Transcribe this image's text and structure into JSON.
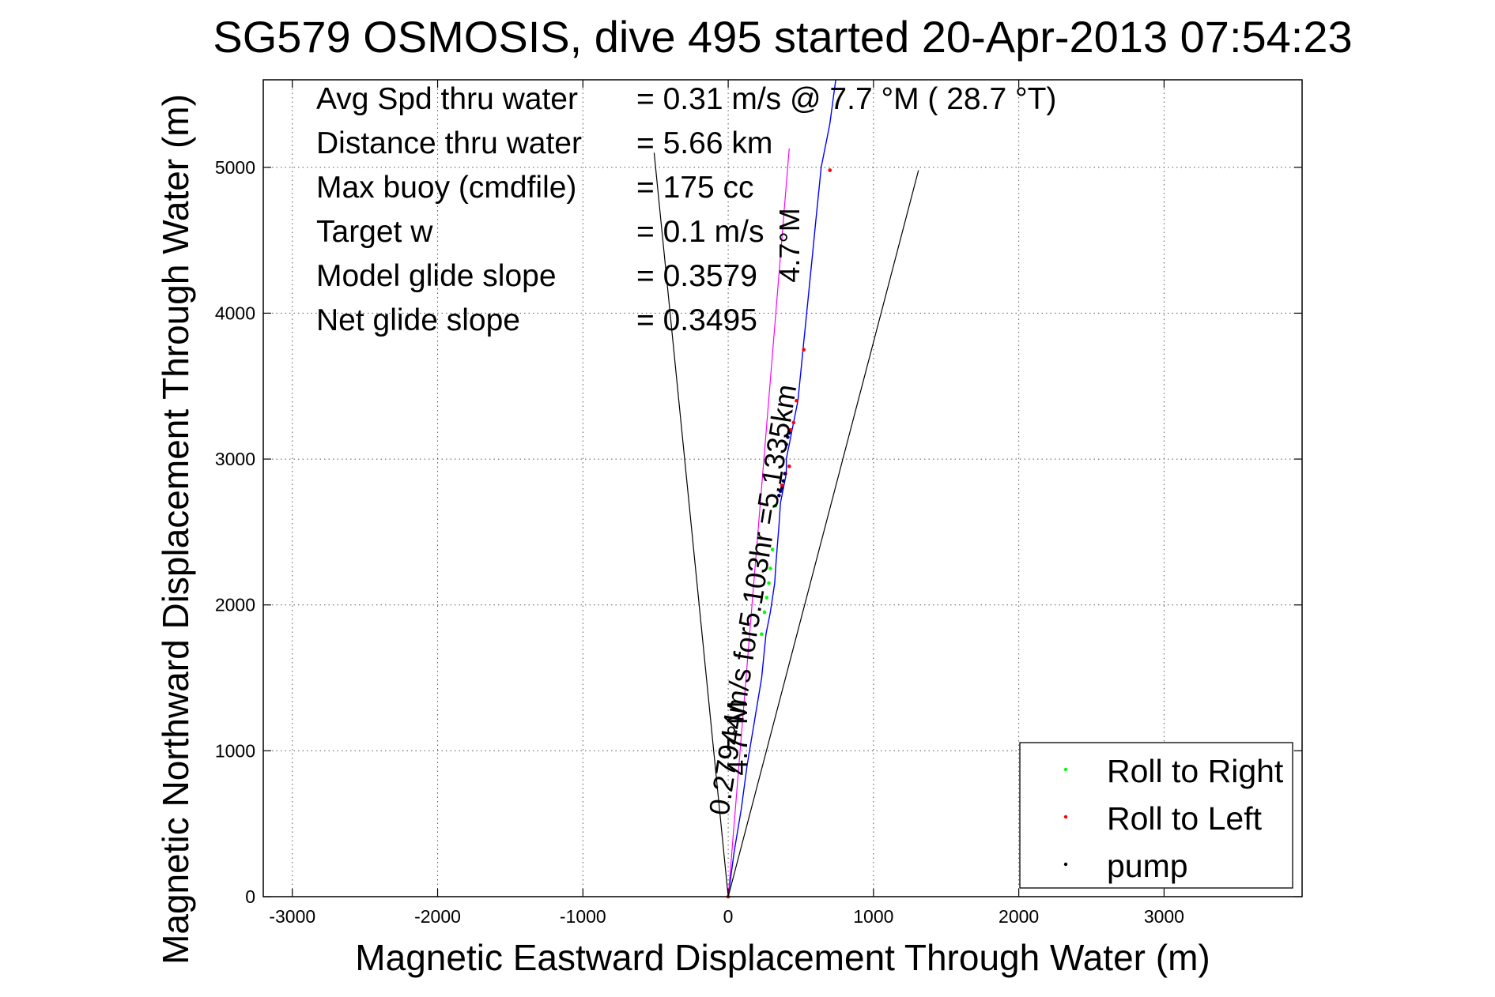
{
  "chart_data": {
    "type": "line",
    "title": "SG579 OSMOSIS, dive 495 started 20-Apr-2013 07:54:23",
    "xlabel": "Magnetic Eastward Displacement Through Water (m)",
    "ylabel": "Magnetic Northward Displacement Through Water (m)",
    "xlim": [
      -3200,
      3950
    ],
    "ylim": [
      0,
      5600
    ],
    "xticks": [
      -3000,
      -2000,
      -1000,
      0,
      1000,
      2000,
      3000
    ],
    "yticks": [
      0,
      1000,
      2000,
      3000,
      4000,
      5000
    ],
    "xtick_labels": [
      "-3000",
      "-2000",
      "-1000",
      "0",
      "1000",
      "2000",
      "3000"
    ],
    "ytick_labels": [
      "0",
      "1000",
      "2000",
      "3000",
      "4000",
      "5000"
    ],
    "grid": true,
    "stats": [
      {
        "label": "Avg Spd thru water",
        "value": "=  0.31 m/s @   7.7 °M ( 28.7 °T)"
      },
      {
        "label": "Distance thru water",
        "value": "=  5.66 km"
      },
      {
        "label": "Max buoy (cmdfile)",
        "value": "= 175 cc"
      },
      {
        "label": "Target w",
        "value": "= 0.1 m/s"
      },
      {
        "label": "Model glide slope",
        "value": "= 0.3579"
      },
      {
        "label": "Net glide slope",
        "value": "= 0.3495"
      }
    ],
    "annotations": [
      {
        "text": "0.27944m/s for5.103hr =5.1335km",
        "x": 0,
        "y": 550,
        "rotation": -81
      },
      {
        "text": "4.7°M",
        "x": 130,
        "y": 830,
        "rotation": -90
      },
      {
        "text": "4.7°M",
        "x": 490,
        "y": 4210,
        "rotation": -90
      }
    ],
    "series": [
      {
        "name": "track",
        "color": "#0000ff",
        "x": [
          0,
          40,
          90,
          130,
          180,
          230,
          260,
          290,
          320,
          330,
          350,
          360,
          380,
          400,
          400,
          410,
          420,
          430,
          440,
          450,
          460,
          480,
          490,
          500,
          510,
          520,
          530,
          540,
          550,
          560,
          580,
          600,
          620,
          640,
          660,
          680,
          700,
          720,
          740
        ],
        "y": [
          0,
          300,
          600,
          900,
          1200,
          1500,
          1800,
          1950,
          2150,
          2300,
          2550,
          2700,
          2800,
          2900,
          3000,
          3050,
          3100,
          3150,
          3200,
          3250,
          3300,
          3400,
          3500,
          3600,
          3700,
          3800,
          3900,
          4000,
          4100,
          4200,
          4400,
          4600,
          4800,
          5000,
          5100,
          5200,
          5300,
          5450,
          5600
        ]
      },
      {
        "name": "net-heading",
        "color": "#ff00ff",
        "x": [
          0,
          420
        ],
        "y": [
          0,
          5130
        ]
      },
      {
        "name": "envelope-left",
        "color": "#000000",
        "x": [
          0,
          -510
        ],
        "y": [
          0,
          5100
        ]
      },
      {
        "name": "envelope-right",
        "color": "#000000",
        "x": [
          0,
          1310
        ],
        "y": [
          0,
          4980
        ]
      }
    ],
    "markers": {
      "roll_right": {
        "x": [
          230,
          250,
          265,
          280,
          290,
          305,
          325
        ],
        "y": [
          1800,
          1950,
          2050,
          2150,
          2250,
          2380,
          2680
        ]
      },
      "roll_left": {
        "x": [
          0,
          370,
          395,
          420,
          430,
          450,
          470,
          520,
          700
        ],
        "y": [
          0,
          2820,
          2900,
          2950,
          3200,
          3250,
          3400,
          3750,
          4980
        ]
      },
      "pump": {
        "x": [
          350,
          360,
          370,
          380,
          390,
          400,
          410,
          420
        ],
        "y": [
          2750,
          2780,
          2800,
          2850,
          2900,
          3100,
          3150,
          3180
        ]
      }
    },
    "legend": {
      "position": "bottom-right",
      "entries": [
        {
          "label": "Roll to Right",
          "color": "#00ff00"
        },
        {
          "label": "Roll to Left",
          "color": "#ff0000"
        },
        {
          "label": "pump",
          "color": "#000000"
        }
      ]
    }
  }
}
